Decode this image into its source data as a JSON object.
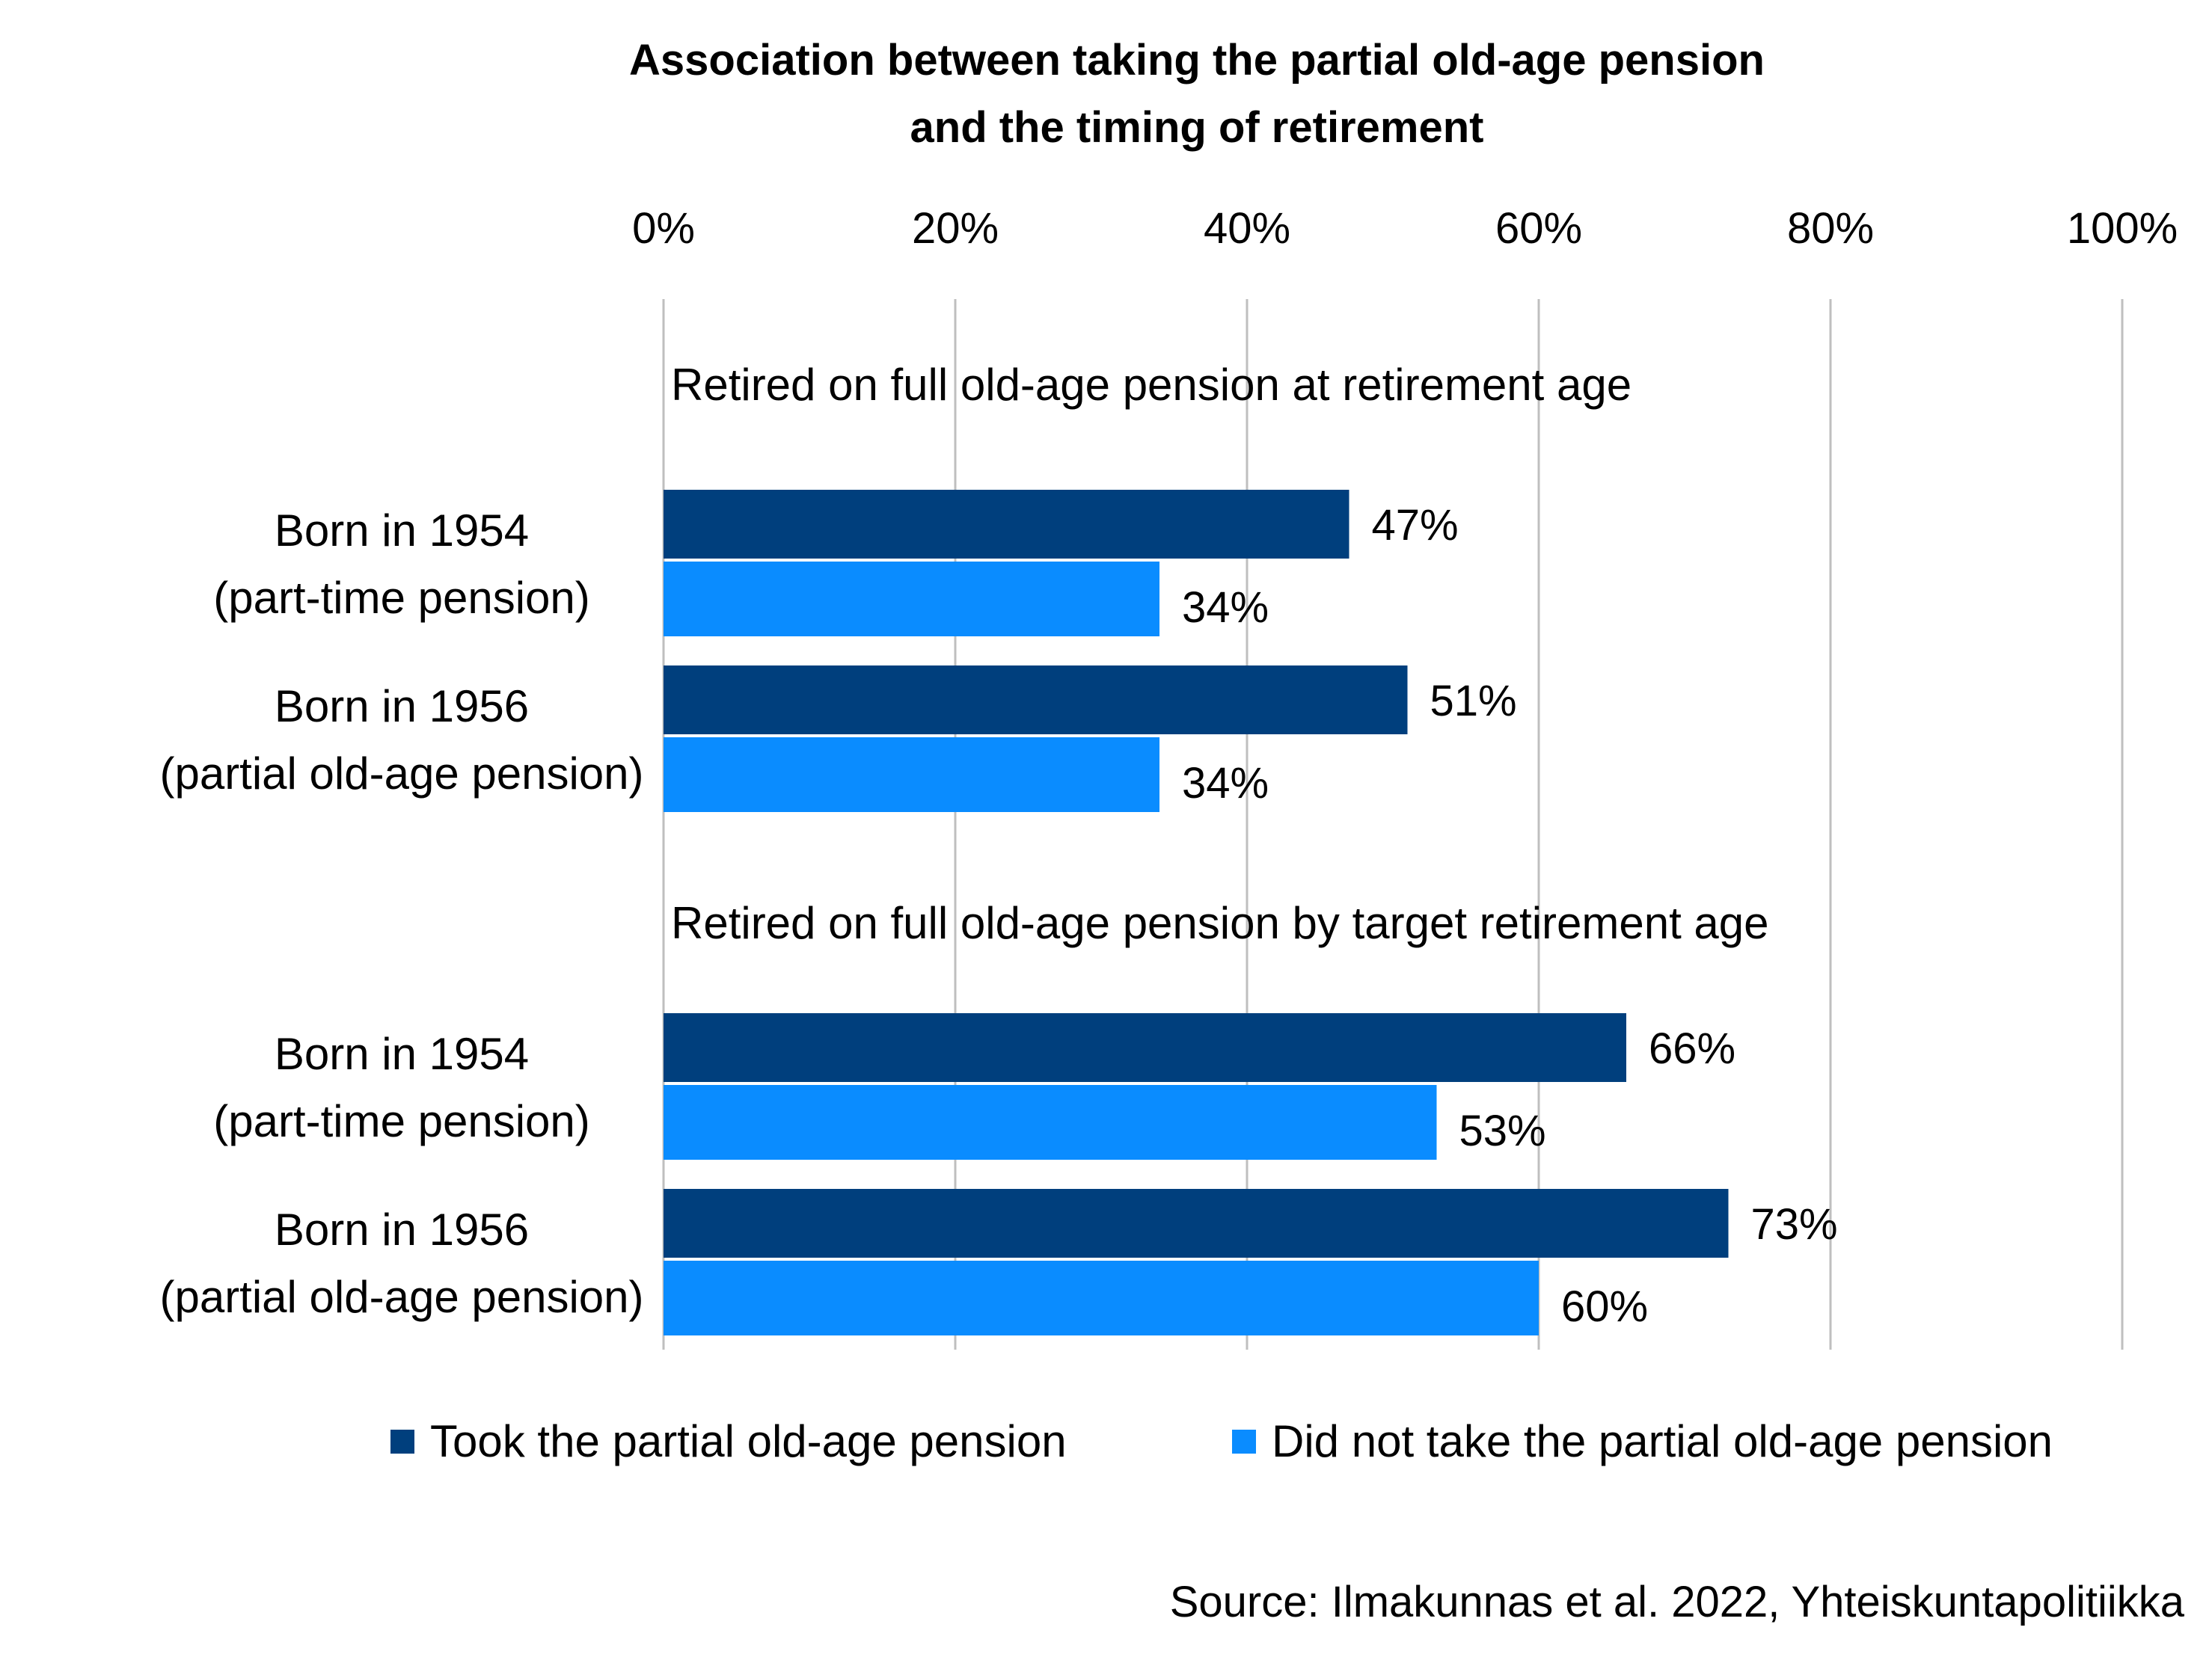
{
  "chart_data": {
    "type": "bar",
    "orientation": "horizontal",
    "title": [
      "Association between taking the partial old-age pension",
      "and the timing of retirement"
    ],
    "xlim": [
      0,
      100
    ],
    "x_ticks": [
      "0%",
      "20%",
      "40%",
      "60%",
      "80%",
      "100%"
    ],
    "grid": true,
    "legend_position": "bottom",
    "groups": [
      {
        "label": "Retired on full old-age pension at retirement age",
        "categories": [
          {
            "lines": [
              "Born in 1954",
              "(part-time pension)"
            ],
            "values": [
              47,
              34
            ]
          },
          {
            "lines": [
              "Born in 1956",
              "(partial old-age pension)"
            ],
            "values": [
              51,
              34
            ]
          }
        ]
      },
      {
        "label": "Retired on full old-age pension by target retirement age",
        "categories": [
          {
            "lines": [
              "Born in 1954",
              "(part-time pension)"
            ],
            "values": [
              66,
              53
            ]
          },
          {
            "lines": [
              "Born in 1956",
              "(partial old-age pension)"
            ],
            "values": [
              73,
              60
            ]
          }
        ]
      }
    ],
    "series": [
      {
        "name": "Took the partial old-age pension",
        "color": "#003F7D"
      },
      {
        "name": "Did not take the partial old-age pension",
        "color": "#0A8CFF"
      }
    ],
    "value_suffix": "%",
    "source": "Source: Ilmakunnas et al. 2022, Yhteiskuntapolitiikka"
  }
}
